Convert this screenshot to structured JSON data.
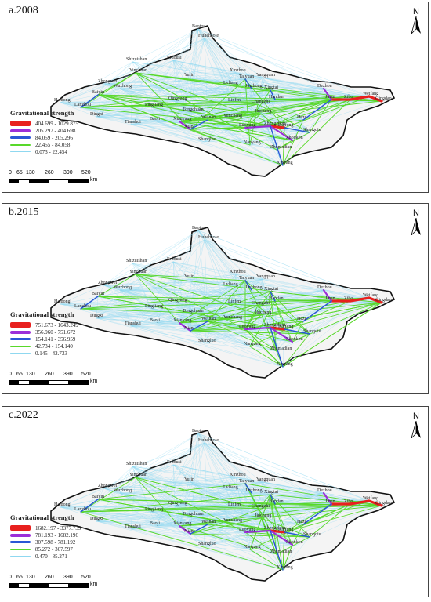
{
  "panels": [
    {
      "title": "a.2008",
      "legend_title": "Gravitational strength",
      "legend": [
        {
          "range": "404.699 - 1029.875",
          "color": "#e8201e"
        },
        {
          "range": "205.297 - 404.698",
          "color": "#9b2fd9"
        },
        {
          "range": "84.059 - 205.296",
          "color": "#2a57d6"
        },
        {
          "range": "22.455 - 84.058",
          "color": "#58d82a"
        },
        {
          "range": "0.073 - 22.454",
          "color": "#8fd8f0"
        }
      ]
    },
    {
      "title": "b.2015",
      "legend_title": "Gravitational strength",
      "legend": [
        {
          "range": "751.673 - 1643.249",
          "color": "#e8201e"
        },
        {
          "range": "356.960 - 751.672",
          "color": "#9b2fd9"
        },
        {
          "range": "154.141 - 356.959",
          "color": "#2a57d6"
        },
        {
          "range": "42.734 - 154.140",
          "color": "#58d82a"
        },
        {
          "range": "0.145 - 42.733",
          "color": "#8fd8f0"
        }
      ]
    },
    {
      "title": "c.2022",
      "legend_title": "Gravitational strength",
      "legend": [
        {
          "range": "1682.197 - 3377.739",
          "color": "#e8201e"
        },
        {
          "range": "781.193 - 1682.196",
          "color": "#9b2fd9"
        },
        {
          "range": "307.598 - 781.192",
          "color": "#2a57d6"
        },
        {
          "range": "85.272 - 307.597",
          "color": "#58d82a"
        },
        {
          "range": "0.470 - 85.271",
          "color": "#8fd8f0"
        }
      ]
    }
  ],
  "north_label": "N",
  "scale": {
    "ticks": [
      "0",
      "65",
      "130",
      "260",
      "390",
      "520"
    ],
    "unit": "km"
  },
  "cities": [
    "Baotou",
    "Huhehaote",
    "Erdousi",
    "Yulin",
    "Xinzhou",
    "Taiyuan",
    "Yangquan",
    "Lvliang",
    "Jinzhong",
    "Xingtai",
    "Handan",
    "Linfen",
    "Changzhi",
    "Jincheng",
    "Yuncheng",
    "Qingyang",
    "Pingliang",
    "Tongchuan",
    "Weinan",
    "Xianyang",
    "Baoji",
    "Xian",
    "Shangluo",
    "Luoyang",
    "Zhengzhou",
    "Kaifeng",
    "Heze",
    "Nanyang",
    "Zhumadian",
    "Xinyang",
    "Zhoukou",
    "Shangqiu",
    "Dingxi",
    "Baiyin",
    "Wuzhong",
    "Zhongwei",
    "Shizuishan",
    "Yinchuan",
    "Haidong",
    "Lanzhou",
    "Tianshui",
    "Dezhou",
    "Jinan",
    "Zibo",
    "Weifang",
    "Qingdao"
  ]
}
